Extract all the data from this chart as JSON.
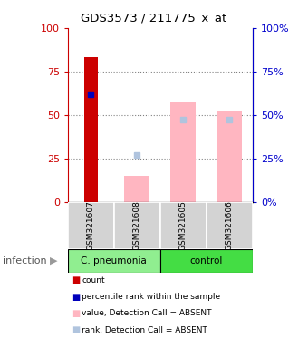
{
  "title": "GDS3573 / 211775_x_at",
  "samples": [
    "GSM321607",
    "GSM321608",
    "GSM321605",
    "GSM321606"
  ],
  "yticks": [
    0,
    25,
    50,
    75,
    100
  ],
  "left_axis_color": "#CC0000",
  "right_axis_color": "#0000CC",
  "count_bars": [
    83,
    null,
    null,
    null
  ],
  "count_color": "#CC0000",
  "value_absent_bars": [
    null,
    15,
    57,
    52
  ],
  "value_absent_color": "#FFB6C1",
  "rank_absent_marker": [
    null,
    27,
    null,
    null
  ],
  "rank_absent_on_bar": [
    null,
    null,
    47,
    47
  ],
  "rank_absent_color": "#B0C4DE",
  "percentile_dots": [
    62,
    null,
    null,
    null
  ],
  "percentile_color": "#0000BB",
  "legend_items": [
    {
      "color": "#CC0000",
      "label": "count"
    },
    {
      "color": "#0000BB",
      "label": "percentile rank within the sample"
    },
    {
      "color": "#FFB6C1",
      "label": "value, Detection Call = ABSENT"
    },
    {
      "color": "#B0C4DE",
      "label": "rank, Detection Call = ABSENT"
    }
  ],
  "group_label": "infection",
  "cpneumonia_color": "#90EE90",
  "control_color": "#44DD44",
  "sample_box_color": "#D3D3D3",
  "grid_color": "gray"
}
